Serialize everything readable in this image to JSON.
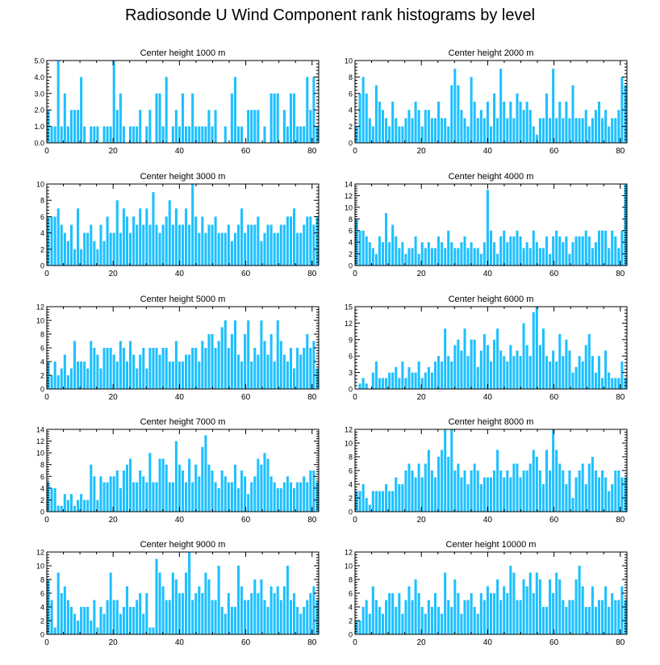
{
  "title": "Radiosonde U Wind Component rank histograms by level",
  "bar_color": "#1EC0FF",
  "chart_data": [
    {
      "type": "bar",
      "title": "Center height 1000 m",
      "xlim": [
        0,
        82
      ],
      "ylim": [
        0,
        5
      ],
      "xticks": [
        0,
        20,
        40,
        60,
        80
      ],
      "yticks": [
        0,
        1,
        2,
        3,
        4,
        5
      ],
      "ytick_labels": [
        "0.0",
        "1.0",
        "2.0",
        "3.0",
        "4.0",
        "5.0"
      ],
      "values": [
        2,
        1,
        1,
        5,
        1,
        3,
        1,
        2,
        2,
        2,
        4,
        1,
        0,
        1,
        1,
        1,
        0,
        1,
        1,
        1,
        5,
        2,
        3,
        1,
        0,
        1,
        1,
        1,
        2,
        0,
        1,
        2,
        0,
        3,
        3,
        1,
        4,
        0,
        1,
        2,
        1,
        3,
        1,
        1,
        3,
        1,
        1,
        1,
        1,
        2,
        1,
        2,
        0,
        0,
        1,
        0,
        3,
        4,
        1,
        1,
        0,
        2,
        2,
        2,
        2,
        0,
        1,
        0,
        3,
        3,
        3,
        0,
        2,
        1,
        3,
        3,
        1,
        1,
        1,
        4,
        2,
        4,
        1
      ]
    },
    {
      "type": "bar",
      "title": "Center height 2000 m",
      "xlim": [
        0,
        82
      ],
      "ylim": [
        0,
        10
      ],
      "xticks": [
        0,
        20,
        40,
        60,
        80
      ],
      "yticks": [
        0,
        2,
        4,
        6,
        8,
        10
      ],
      "ytick_labels": [
        "0",
        "2",
        "4",
        "6",
        "8",
        "10"
      ],
      "values": [
        2,
        6,
        8,
        6,
        3,
        2,
        7,
        5,
        4,
        3,
        2,
        5,
        3,
        2,
        2,
        3,
        4,
        3,
        5,
        4,
        2,
        4,
        4,
        3,
        3,
        5,
        3,
        3,
        2,
        7,
        9,
        7,
        4,
        3,
        2,
        8,
        5,
        3,
        4,
        3,
        5,
        2,
        6,
        3,
        9,
        5,
        3,
        5,
        3,
        6,
        5,
        4,
        5,
        4,
        2,
        1,
        3,
        3,
        6,
        3,
        9,
        3,
        5,
        3,
        5,
        3,
        7,
        3,
        3,
        3,
        4,
        2,
        3,
        4,
        5,
        3,
        4,
        2,
        3,
        3,
        4,
        8,
        7
      ]
    },
    {
      "type": "bar",
      "title": "Center height 3000 m",
      "xlim": [
        0,
        82
      ],
      "ylim": [
        0,
        10
      ],
      "xticks": [
        0,
        20,
        40,
        60,
        80
      ],
      "yticks": [
        0,
        2,
        4,
        6,
        8,
        10
      ],
      "ytick_labels": [
        "0",
        "2",
        "4",
        "6",
        "8",
        "10"
      ],
      "values": [
        6,
        6,
        6,
        7,
        5,
        4,
        3,
        5,
        2,
        7,
        2,
        4,
        4,
        5,
        3,
        2,
        5,
        3,
        6,
        4,
        4,
        8,
        4,
        7,
        6,
        4,
        6,
        5,
        7,
        5,
        7,
        5,
        9,
        5,
        4,
        5,
        6,
        8,
        5,
        7,
        5,
        5,
        7,
        5,
        10,
        6,
        4,
        6,
        4,
        5,
        5,
        6,
        4,
        4,
        4,
        5,
        3,
        4,
        5,
        7,
        4,
        5,
        5,
        5,
        6,
        3,
        4,
        5,
        5,
        4,
        4,
        5,
        5,
        6,
        6,
        7,
        4,
        4,
        5,
        6,
        6,
        5,
        6
      ]
    },
    {
      "type": "bar",
      "title": "Center height 4000 m",
      "xlim": [
        0,
        82
      ],
      "ylim": [
        0,
        14
      ],
      "xticks": [
        0,
        20,
        40,
        60,
        80
      ],
      "yticks": [
        0,
        2,
        4,
        6,
        8,
        10,
        12,
        14
      ],
      "ytick_labels": [
        "0",
        "2",
        "4",
        "6",
        "8",
        "10",
        "12",
        "14"
      ],
      "values": [
        8,
        6,
        6,
        5,
        4,
        3,
        2,
        5,
        4,
        9,
        4,
        7,
        5,
        3,
        4,
        2,
        3,
        3,
        5,
        2,
        4,
        3,
        4,
        3,
        3,
        5,
        4,
        3,
        6,
        4,
        3,
        3,
        4,
        5,
        3,
        4,
        3,
        3,
        2,
        4,
        13,
        6,
        4,
        2,
        5,
        6,
        4,
        5,
        5,
        6,
        5,
        3,
        4,
        3,
        6,
        4,
        3,
        3,
        5,
        2,
        5,
        6,
        5,
        4,
        5,
        2,
        4,
        5,
        5,
        5,
        6,
        5,
        3,
        4,
        6,
        6,
        6,
        3,
        6,
        5,
        3,
        6,
        14
      ]
    },
    {
      "type": "bar",
      "title": "Center height 5000 m",
      "xlim": [
        0,
        82
      ],
      "ylim": [
        0,
        12
      ],
      "xticks": [
        0,
        20,
        40,
        60,
        80
      ],
      "yticks": [
        0,
        2,
        4,
        6,
        8,
        10,
        12
      ],
      "ytick_labels": [
        "0",
        "2",
        "4",
        "6",
        "8",
        "10",
        "12"
      ],
      "values": [
        4,
        2,
        4,
        2,
        3,
        5,
        2,
        3,
        7,
        4,
        4,
        4,
        3,
        7,
        6,
        5,
        3,
        6,
        6,
        6,
        5,
        4,
        7,
        6,
        4,
        7,
        5,
        3,
        5,
        6,
        3,
        6,
        6,
        6,
        5,
        6,
        6,
        4,
        4,
        7,
        4,
        4,
        5,
        5,
        6,
        6,
        4,
        7,
        6,
        8,
        8,
        6,
        7,
        9,
        10,
        6,
        8,
        10,
        5,
        4,
        8,
        10,
        4,
        6,
        5,
        10,
        7,
        5,
        8,
        4,
        10,
        7,
        5,
        4,
        6,
        3,
        6,
        5,
        6,
        8,
        6,
        7,
        3
      ]
    },
    {
      "type": "bar",
      "title": "Center height 6000 m",
      "xlim": [
        0,
        82
      ],
      "ylim": [
        0,
        15
      ],
      "xticks": [
        0,
        20,
        40,
        60,
        80
      ],
      "yticks": [
        0,
        3,
        6,
        9,
        12,
        15
      ],
      "ytick_labels": [
        "0",
        "3",
        "6",
        "9",
        "12",
        "15"
      ],
      "values": [
        0,
        1,
        2,
        1,
        0,
        3,
        5,
        2,
        2,
        2,
        3,
        3,
        4,
        2,
        5,
        2,
        4,
        3,
        3,
        5,
        2,
        3,
        4,
        3,
        5,
        6,
        5,
        11,
        6,
        5,
        8,
        9,
        7,
        11,
        6,
        9,
        9,
        4,
        7,
        10,
        8,
        5,
        9,
        11,
        7,
        6,
        5,
        8,
        6,
        7,
        6,
        12,
        8,
        6,
        14,
        15,
        8,
        11,
        6,
        5,
        7,
        5,
        10,
        6,
        9,
        7,
        3,
        4,
        6,
        5,
        8,
        10,
        6,
        3,
        6,
        2,
        7,
        3,
        2,
        2,
        2,
        5,
        2
      ]
    },
    {
      "type": "bar",
      "title": "Center height 7000 m",
      "xlim": [
        0,
        82
      ],
      "ylim": [
        0,
        14
      ],
      "xticks": [
        0,
        20,
        40,
        60,
        80
      ],
      "yticks": [
        0,
        2,
        4,
        6,
        8,
        10,
        12,
        14
      ],
      "ytick_labels": [
        "0",
        "2",
        "4",
        "6",
        "8",
        "10",
        "12",
        "14"
      ],
      "values": [
        5,
        4,
        4,
        1,
        1,
        3,
        2,
        3,
        1,
        2,
        3,
        2,
        2,
        8,
        6,
        2,
        6,
        5,
        5,
        6,
        6,
        7,
        4,
        7,
        8,
        9,
        5,
        5,
        7,
        6,
        5,
        10,
        5,
        5,
        9,
        9,
        8,
        5,
        5,
        12,
        8,
        7,
        5,
        9,
        5,
        8,
        6,
        11,
        13,
        8,
        7,
        5,
        4,
        7,
        6,
        5,
        5,
        8,
        4,
        7,
        6,
        3,
        5,
        6,
        9,
        8,
        10,
        9,
        6,
        5,
        4,
        4,
        5,
        6,
        5,
        4,
        5,
        5,
        6,
        5,
        7,
        7,
        5
      ]
    },
    {
      "type": "bar",
      "title": "Center height 8000 m",
      "xlim": [
        0,
        82
      ],
      "ylim": [
        0,
        12
      ],
      "xticks": [
        0,
        20,
        40,
        60,
        80
      ],
      "yticks": [
        0,
        2,
        4,
        6,
        8,
        10,
        12
      ],
      "ytick_labels": [
        "0",
        "2",
        "4",
        "6",
        "8",
        "10",
        "12"
      ],
      "values": [
        3,
        3,
        4,
        2,
        1,
        3,
        3,
        3,
        3,
        4,
        3,
        3,
        5,
        4,
        4,
        6,
        7,
        6,
        5,
        7,
        5,
        7,
        9,
        6,
        5,
        8,
        9,
        12,
        8,
        12,
        6,
        7,
        5,
        6,
        4,
        6,
        7,
        6,
        4,
        5,
        5,
        5,
        6,
        9,
        6,
        5,
        6,
        5,
        7,
        7,
        5,
        6,
        6,
        7,
        9,
        8,
        6,
        4,
        9,
        6,
        12,
        9,
        7,
        6,
        4,
        6,
        2,
        5,
        6,
        7,
        4,
        7,
        8,
        6,
        5,
        6,
        5,
        3,
        4,
        6,
        6,
        5,
        5
      ]
    },
    {
      "type": "bar",
      "title": "Center height 9000 m",
      "xlim": [
        0,
        82
      ],
      "ylim": [
        0,
        12
      ],
      "xticks": [
        0,
        20,
        40,
        60,
        80
      ],
      "yticks": [
        0,
        2,
        4,
        6,
        8,
        10,
        12
      ],
      "ytick_labels": [
        "0",
        "2",
        "4",
        "6",
        "8",
        "10",
        "12"
      ],
      "values": [
        8,
        5,
        1,
        9,
        6,
        7,
        5,
        4,
        3,
        2,
        4,
        4,
        4,
        2,
        5,
        1,
        4,
        3,
        5,
        9,
        5,
        5,
        3,
        4,
        7,
        4,
        4,
        5,
        6,
        3,
        6,
        1,
        1,
        11,
        9,
        7,
        5,
        5,
        9,
        8,
        6,
        6,
        9,
        12,
        5,
        6,
        7,
        6,
        9,
        8,
        5,
        5,
        10,
        4,
        3,
        6,
        4,
        4,
        10,
        7,
        5,
        5,
        6,
        8,
        6,
        8,
        5,
        4,
        7,
        6,
        7,
        5,
        7,
        10,
        5,
        6,
        4,
        3,
        4,
        5,
        6,
        7,
        5
      ]
    },
    {
      "type": "bar",
      "title": "Center height 10000 m",
      "xlim": [
        0,
        82
      ],
      "ylim": [
        0,
        12
      ],
      "xticks": [
        0,
        20,
        40,
        60,
        80
      ],
      "yticks": [
        0,
        2,
        4,
        6,
        8,
        10,
        12
      ],
      "ytick_labels": [
        "0",
        "2",
        "4",
        "6",
        "8",
        "10",
        "12"
      ],
      "values": [
        2,
        2,
        4,
        5,
        3,
        7,
        5,
        4,
        3,
        5,
        6,
        6,
        4,
        6,
        3,
        5,
        7,
        5,
        8,
        6,
        4,
        3,
        5,
        4,
        6,
        4,
        3,
        9,
        5,
        4,
        8,
        6,
        3,
        5,
        5,
        6,
        4,
        3,
        6,
        5,
        7,
        6,
        6,
        8,
        5,
        7,
        6,
        10,
        9,
        5,
        5,
        8,
        7,
        9,
        6,
        9,
        8,
        4,
        4,
        8,
        6,
        9,
        8,
        5,
        4,
        5,
        5,
        8,
        10,
        7,
        4,
        4,
        7,
        4,
        5,
        5,
        7,
        4,
        6,
        5,
        5,
        7,
        5
      ]
    }
  ]
}
